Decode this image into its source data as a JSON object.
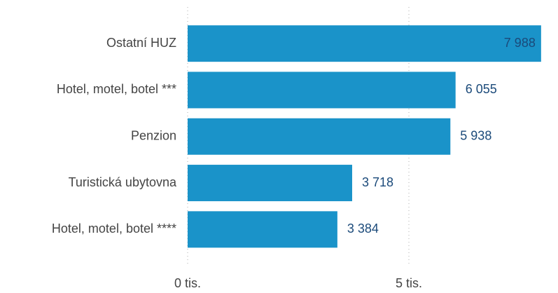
{
  "chart_data": {
    "type": "hbar",
    "categories": [
      "Ostatní HUZ",
      "Hotel, motel, botel ***",
      "Penzion",
      "Turistická ubytovna",
      "Hotel, motel, botel ****"
    ],
    "values": [
      7988,
      6055,
      5938,
      3718,
      3384
    ],
    "value_labels": [
      "7 988",
      "6 055",
      "5 938",
      "3 718",
      "3 384"
    ],
    "color": "#1a93c9",
    "xlim": [
      0,
      8370
    ],
    "xticks": [
      {
        "value": 0,
        "label": "0 tis."
      },
      {
        "value": 5000,
        "label": "5 tis."
      }
    ],
    "grid": true
  }
}
